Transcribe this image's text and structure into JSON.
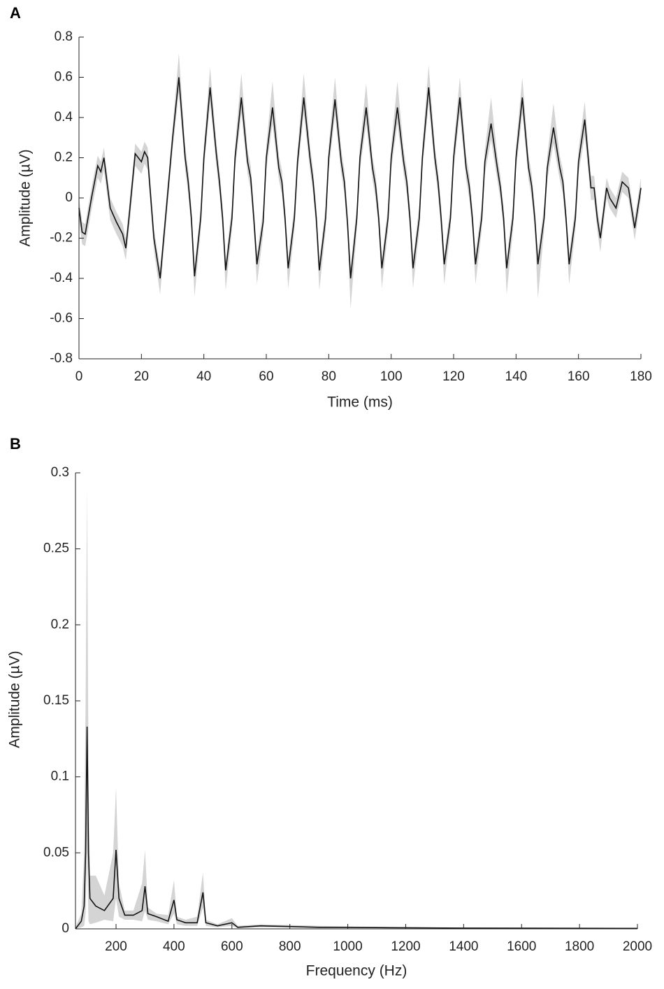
{
  "chart_data": [
    {
      "type": "line",
      "panel_label": "A",
      "xlabel": "Time (ms)",
      "ylabel": "Amplitude (µV)",
      "color": "#111111",
      "band_color": "#d4d4d4",
      "xlim": [
        0,
        180
      ],
      "ylim": [
        -0.8,
        0.8
      ],
      "xticks": [
        0,
        20,
        40,
        60,
        80,
        100,
        120,
        140,
        160,
        180
      ],
      "yticks": [
        -0.8,
        -0.6,
        -0.4,
        -0.2,
        0,
        0.2,
        0.4,
        0.6,
        0.8
      ],
      "x": [
        0,
        1,
        2,
        4,
        6,
        7,
        8,
        10,
        12,
        14,
        15,
        16,
        18,
        20,
        21,
        22,
        24,
        26,
        28,
        30,
        32,
        34,
        35,
        36,
        37,
        39,
        40,
        42,
        44,
        45,
        46,
        47,
        49,
        50,
        52,
        54,
        55,
        56,
        57,
        59,
        60,
        62,
        64,
        65,
        66,
        67,
        69,
        70,
        72,
        74,
        75,
        76,
        77,
        79,
        80,
        82,
        84,
        85,
        86,
        87,
        89,
        90,
        92,
        94,
        95,
        96,
        97,
        99,
        100,
        102,
        104,
        105,
        106,
        107,
        109,
        110,
        112,
        114,
        115,
        116,
        117,
        119,
        120,
        122,
        124,
        125,
        126,
        127,
        129,
        130,
        132,
        134,
        135,
        136,
        137,
        139,
        140,
        142,
        144,
        145,
        146,
        147,
        149,
        150,
        152,
        154,
        155,
        156,
        157,
        159,
        160,
        162,
        164,
        165,
        166,
        167,
        169,
        170,
        172,
        174,
        176,
        178,
        180
      ],
      "values": [
        -0.05,
        -0.17,
        -0.18,
        0.0,
        0.16,
        0.13,
        0.2,
        -0.05,
        -0.12,
        -0.18,
        -0.25,
        -0.1,
        0.22,
        0.18,
        0.23,
        0.2,
        -0.2,
        -0.4,
        -0.05,
        0.3,
        0.6,
        0.2,
        0.08,
        -0.1,
        -0.39,
        -0.1,
        0.2,
        0.55,
        0.22,
        0.08,
        -0.1,
        -0.36,
        -0.1,
        0.2,
        0.5,
        0.18,
        0.1,
        -0.1,
        -0.33,
        -0.12,
        0.2,
        0.45,
        0.15,
        0.08,
        -0.1,
        -0.35,
        -0.1,
        0.18,
        0.5,
        0.2,
        0.08,
        -0.1,
        -0.36,
        -0.1,
        0.2,
        0.49,
        0.18,
        0.08,
        -0.12,
        -0.4,
        -0.1,
        0.2,
        0.45,
        0.15,
        0.06,
        -0.1,
        -0.35,
        -0.1,
        0.2,
        0.45,
        0.18,
        0.08,
        -0.1,
        -0.35,
        -0.1,
        0.2,
        0.55,
        0.2,
        0.08,
        -0.1,
        -0.33,
        -0.1,
        0.2,
        0.5,
        0.15,
        0.06,
        -0.1,
        -0.33,
        -0.1,
        0.18,
        0.37,
        0.15,
        0.05,
        -0.1,
        -0.35,
        -0.1,
        0.2,
        0.5,
        0.15,
        0.06,
        -0.1,
        -0.33,
        -0.1,
        0.15,
        0.35,
        0.15,
        0.08,
        -0.1,
        -0.33,
        -0.1,
        0.18,
        0.39,
        0.05,
        0.05,
        -0.1,
        -0.2,
        0.05,
        0.0,
        -0.05,
        0.08,
        0.05,
        -0.15,
        0.05
      ],
      "band_upper": [
        0.0,
        -0.12,
        -0.13,
        0.05,
        0.21,
        0.18,
        0.25,
        0.0,
        -0.07,
        -0.13,
        -0.2,
        -0.05,
        0.27,
        0.23,
        0.28,
        0.25,
        -0.15,
        -0.35,
        0.0,
        0.35,
        0.72,
        0.26,
        0.14,
        -0.04,
        -0.34,
        -0.04,
        0.26,
        0.65,
        0.28,
        0.14,
        -0.04,
        -0.31,
        -0.04,
        0.26,
        0.62,
        0.24,
        0.16,
        -0.04,
        -0.28,
        -0.06,
        0.26,
        0.58,
        0.21,
        0.14,
        -0.04,
        -0.3,
        -0.04,
        0.24,
        0.62,
        0.26,
        0.14,
        -0.04,
        -0.31,
        -0.04,
        0.26,
        0.6,
        0.24,
        0.14,
        -0.06,
        -0.35,
        -0.04,
        0.26,
        0.57,
        0.21,
        0.12,
        -0.04,
        -0.3,
        -0.04,
        0.26,
        0.58,
        0.24,
        0.14,
        -0.04,
        -0.3,
        -0.04,
        0.26,
        0.66,
        0.26,
        0.14,
        -0.04,
        -0.28,
        -0.04,
        0.26,
        0.6,
        0.21,
        0.12,
        -0.04,
        -0.28,
        -0.04,
        0.24,
        0.5,
        0.21,
        0.11,
        -0.04,
        -0.3,
        -0.04,
        0.26,
        0.6,
        0.21,
        0.12,
        -0.04,
        -0.28,
        -0.04,
        0.21,
        0.47,
        0.21,
        0.14,
        -0.04,
        -0.28,
        -0.04,
        0.24,
        0.48,
        0.11,
        0.11,
        -0.04,
        -0.15,
        0.1,
        0.05,
        0.0,
        0.13,
        0.1,
        -0.1,
        0.1
      ],
      "band_lower": [
        -0.11,
        -0.23,
        -0.24,
        -0.06,
        0.1,
        0.07,
        0.14,
        -0.11,
        -0.18,
        -0.24,
        -0.31,
        -0.16,
        0.16,
        0.12,
        0.17,
        0.14,
        -0.26,
        -0.48,
        -0.11,
        0.24,
        0.52,
        0.14,
        0.02,
        -0.16,
        -0.49,
        -0.16,
        0.14,
        0.47,
        0.16,
        0.02,
        -0.16,
        -0.46,
        -0.16,
        0.14,
        0.42,
        0.12,
        0.04,
        -0.16,
        -0.43,
        -0.18,
        0.14,
        0.37,
        0.09,
        0.02,
        -0.16,
        -0.45,
        -0.16,
        0.12,
        0.42,
        0.14,
        0.02,
        -0.16,
        -0.46,
        -0.16,
        0.14,
        0.41,
        0.12,
        0.02,
        -0.18,
        -0.55,
        -0.16,
        0.14,
        0.37,
        0.09,
        0.0,
        -0.16,
        -0.45,
        -0.16,
        0.14,
        0.37,
        0.12,
        0.02,
        -0.16,
        -0.45,
        -0.16,
        0.14,
        0.47,
        0.14,
        0.02,
        -0.16,
        -0.43,
        -0.16,
        0.14,
        0.42,
        0.09,
        0.0,
        -0.16,
        -0.43,
        -0.16,
        0.12,
        0.29,
        0.09,
        -0.01,
        -0.16,
        -0.48,
        -0.16,
        0.14,
        0.42,
        0.09,
        0.0,
        -0.16,
        -0.5,
        -0.16,
        0.09,
        0.27,
        0.09,
        0.02,
        -0.16,
        -0.43,
        -0.16,
        0.12,
        0.31,
        -0.01,
        -0.01,
        -0.16,
        -0.27,
        0.0,
        -0.05,
        -0.1,
        0.03,
        0.0,
        -0.21,
        0.0
      ]
    },
    {
      "type": "line",
      "panel_label": "B",
      "xlabel": "Frequency (Hz)",
      "ylabel": "Amplitude (µV)",
      "color": "#111111",
      "band_color": "#d4d4d4",
      "xlim": [
        60,
        2000
      ],
      "ylim": [
        0,
        0.3
      ],
      "xticks": [
        200,
        400,
        600,
        800,
        1000,
        1200,
        1400,
        1600,
        1800,
        2000
      ],
      "yticks": [
        0,
        0.05,
        0.1,
        0.15,
        0.2,
        0.25,
        0.3
      ],
      "x": [
        60,
        80,
        90,
        95,
        100,
        105,
        110,
        130,
        160,
        190,
        200,
        210,
        230,
        260,
        290,
        300,
        310,
        340,
        380,
        400,
        410,
        440,
        480,
        500,
        510,
        550,
        600,
        620,
        700,
        800,
        900,
        1000,
        1140,
        1400,
        2000
      ],
      "values": [
        0.0,
        0.005,
        0.015,
        0.05,
        0.133,
        0.05,
        0.02,
        0.015,
        0.012,
        0.02,
        0.052,
        0.02,
        0.009,
        0.009,
        0.012,
        0.028,
        0.01,
        0.008,
        0.005,
        0.019,
        0.006,
        0.004,
        0.004,
        0.024,
        0.004,
        0.002,
        0.004,
        0.001,
        0.002,
        0.0015,
        0.001,
        0.001,
        0.0008,
        0.0005,
        0.0003
      ],
      "band_upper": [
        0.001,
        0.01,
        0.05,
        0.15,
        0.29,
        0.1,
        0.035,
        0.035,
        0.022,
        0.05,
        0.093,
        0.03,
        0.012,
        0.012,
        0.03,
        0.052,
        0.014,
        0.01,
        0.009,
        0.032,
        0.008,
        0.006,
        0.008,
        0.037,
        0.006,
        0.003,
        0.007,
        0.002,
        0.003,
        0.0025,
        0.002,
        0.0015,
        0.0012,
        0.0008,
        0.0005
      ],
      "band_lower": [
        0,
        0.001,
        0.002,
        0.01,
        0.05,
        0.005,
        0.003,
        0.004,
        0.006,
        0.005,
        0.02,
        0.008,
        0.006,
        0.006,
        0.005,
        0.012,
        0.006,
        0.005,
        0.003,
        0.01,
        0.003,
        0.002,
        0.002,
        0.014,
        0.002,
        0.001,
        0.002,
        0.0005,
        0.001,
        0.0008,
        0.0005,
        0.0005,
        0.0004,
        0.0003,
        0.0001
      ]
    }
  ]
}
